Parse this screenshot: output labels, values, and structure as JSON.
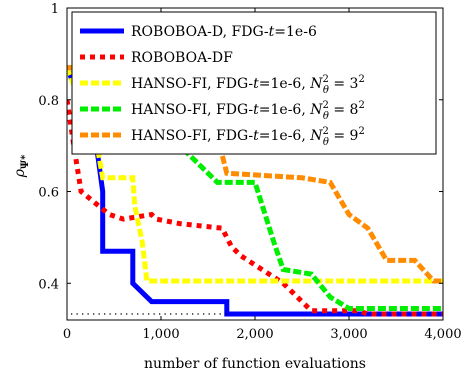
{
  "chart_data": {
    "type": "line",
    "xlabel": "number of function evaluations",
    "ylabel": "ρ",
    "ylabel_sub": "Ψ*",
    "xlim": [
      0,
      4000
    ],
    "ylim": [
      0.32,
      1.0
    ],
    "xticks": [
      0,
      1000,
      2000,
      3000,
      4000
    ],
    "xtick_labels": [
      "0",
      "1,000",
      "2,000",
      "3,000",
      "4,000"
    ],
    "yticks": [
      0.4,
      0.6,
      0.8,
      1.0
    ],
    "ytick_labels": [
      "0.4",
      "0.6",
      "0.8",
      "1"
    ],
    "grid": false,
    "legend_position": "top-right",
    "reference_line": {
      "y": 0.333,
      "x_end": 1700,
      "style": "dotted"
    },
    "series": [
      {
        "name": "ROBOBOA-D, FDG-t=1e-6",
        "legend": {
          "pre": "ROBOBOA-D, FDG-",
          "ital": "t",
          "post": "=1e-6"
        },
        "color": "#0000ff",
        "style": "solid",
        "x": [
          0,
          300,
          380,
          380,
          700,
          700,
          900,
          900,
          1700,
          1700,
          4000
        ],
        "y": [
          0.87,
          0.72,
          0.6,
          0.47,
          0.47,
          0.4,
          0.36,
          0.36,
          0.36,
          0.333,
          0.333
        ]
      },
      {
        "name": "ROBOBOA-DF",
        "legend": {
          "pre": "ROBOBOA-DF",
          "ital": "",
          "post": ""
        },
        "color": "#ff0000",
        "style": "dotted",
        "x": [
          0,
          80,
          150,
          450,
          600,
          900,
          950,
          1200,
          1650,
          1750,
          1850,
          2300,
          2500,
          2600,
          3100,
          3200,
          4000
        ],
        "y": [
          0.8,
          0.69,
          0.6,
          0.55,
          0.54,
          0.55,
          0.54,
          0.53,
          0.52,
          0.48,
          0.46,
          0.4,
          0.36,
          0.34,
          0.34,
          0.333,
          0.333
        ]
      },
      {
        "name": "HANSO-FI, FDG-t=1e-6, Nθ² = 3²",
        "legend": {
          "pre": "HANSO-FI, FDG-",
          "ital": "t",
          "post": "=1e-6, ",
          "math": "N",
          "sub": "θ",
          "sup": "2",
          "eq": " = 3",
          "eqsup": "2"
        },
        "color": "#ffff00",
        "style": "dashed",
        "x": [
          0,
          320,
          380,
          700,
          720,
          800,
          850,
          4000
        ],
        "y": [
          0.87,
          0.7,
          0.63,
          0.63,
          0.57,
          0.49,
          0.405,
          0.405
        ]
      },
      {
        "name": "HANSO-FI, FDG-t=1e-6, Nθ² = 8²",
        "legend": {
          "pre": "HANSO-FI, FDG-",
          "ital": "t",
          "post": "=1e-6, ",
          "math": "N",
          "sub": "θ",
          "sup": "2",
          "eq": " = 8",
          "eqsup": "2"
        },
        "color": "#00ee00",
        "style": "dashed",
        "x": [
          0,
          500,
          800,
          1200,
          1500,
          1600,
          2000,
          2200,
          2300,
          2600,
          2800,
          3000,
          4000
        ],
        "y": [
          0.87,
          0.87,
          0.8,
          0.7,
          0.64,
          0.62,
          0.62,
          0.49,
          0.43,
          0.42,
          0.37,
          0.345,
          0.345
        ]
      },
      {
        "name": "HANSO-FI, FDG-t=1e-6, Nθ² = 9²",
        "legend": {
          "pre": "HANSO-FI, FDG-",
          "ital": "t",
          "post": "=1e-6, ",
          "math": "N",
          "sub": "θ",
          "sup": "2",
          "eq": " = 9",
          "eqsup": "2"
        },
        "color": "#ff8c00",
        "style": "dashed",
        "x": [
          0,
          1000,
          1500,
          1700,
          2500,
          2800,
          3000,
          3200,
          3400,
          3700,
          3900,
          4000
        ],
        "y": [
          0.87,
          0.87,
          0.8,
          0.64,
          0.63,
          0.62,
          0.55,
          0.52,
          0.45,
          0.45,
          0.405,
          0.405
        ]
      }
    ]
  }
}
